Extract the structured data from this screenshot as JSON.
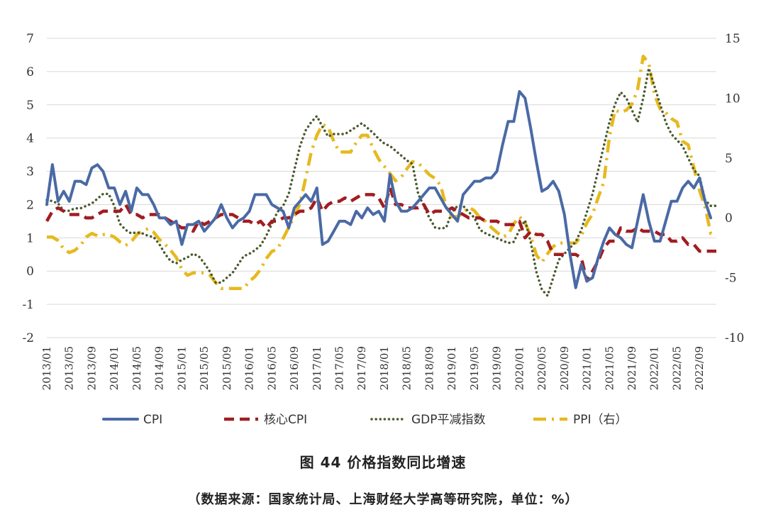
{
  "figure": {
    "title": "图 44 价格指数同比增速",
    "source": "（数据来源：国家统计局、上海财经大学高等研究院，单位：%）"
  },
  "chart_data": {
    "type": "line",
    "x_tick_labels": [
      "2013/01",
      "2013/05",
      "2013/09",
      "2014/01",
      "2014/05",
      "2014/09",
      "2015/01",
      "2015/05",
      "2015/09",
      "2016/01",
      "2016/05",
      "2016/09",
      "2017/01",
      "2017/05",
      "2017/09",
      "2018/01",
      "2018/05",
      "2018/09",
      "2019/01",
      "2019/05",
      "2019/09",
      "2020/01",
      "2020/05",
      "2020/09",
      "2021/01",
      "2021/05",
      "2021/09",
      "2022/01",
      "2022/05",
      "2022/09"
    ],
    "x_start": "2013/01",
    "x_end": "2022/12",
    "y_left": {
      "range": [
        -2,
        7
      ],
      "ticks": [
        "-2",
        "-1",
        "0",
        "1",
        "2",
        "3",
        "4",
        "5",
        "6",
        "7"
      ]
    },
    "y_right": {
      "range": [
        -10,
        15
      ],
      "ticks": [
        "-10",
        "-5",
        "0",
        "5",
        "10",
        "15"
      ]
    },
    "grid": "horizontal",
    "legend_position": "bottom",
    "series": [
      {
        "name": "CPI",
        "axis": "left",
        "color": "#4a6aa5",
        "style": "solid",
        "values": [
          2.0,
          3.2,
          2.1,
          2.4,
          2.1,
          2.7,
          2.7,
          2.6,
          3.1,
          3.2,
          3.0,
          2.5,
          2.5,
          2.0,
          2.4,
          1.8,
          2.5,
          2.3,
          2.3,
          2.0,
          1.6,
          1.6,
          1.4,
          1.5,
          0.8,
          1.4,
          1.4,
          1.5,
          1.2,
          1.4,
          1.6,
          2.0,
          1.6,
          1.3,
          1.5,
          1.6,
          1.8,
          2.3,
          2.3,
          2.3,
          2.0,
          1.9,
          1.8,
          1.3,
          1.9,
          2.1,
          2.3,
          2.1,
          2.5,
          0.8,
          0.9,
          1.2,
          1.5,
          1.5,
          1.4,
          1.8,
          1.6,
          1.9,
          1.7,
          1.8,
          1.5,
          2.9,
          2.1,
          1.8,
          1.8,
          1.9,
          2.1,
          2.3,
          2.5,
          2.5,
          2.2,
          1.9,
          1.7,
          1.5,
          2.3,
          2.5,
          2.7,
          2.7,
          2.8,
          2.8,
          3.0,
          3.8,
          4.5,
          4.5,
          5.4,
          5.2,
          4.3,
          3.3,
          2.4,
          2.5,
          2.7,
          2.4,
          1.7,
          0.5,
          -0.5,
          0.2,
          -0.3,
          -0.2,
          0.4,
          0.9,
          1.3,
          1.1,
          1.0,
          0.8,
          0.7,
          1.5,
          2.3,
          1.5,
          0.9,
          0.9,
          1.5,
          2.1,
          2.1,
          2.5,
          2.7,
          2.5,
          2.8,
          2.1,
          1.6
        ]
      },
      {
        "name": "核心CPI",
        "axis": "left",
        "color": "#a11d21",
        "style": "dashed",
        "values": [
          1.5,
          1.8,
          1.9,
          1.8,
          1.7,
          1.7,
          1.7,
          1.6,
          1.6,
          1.7,
          1.8,
          1.8,
          1.8,
          1.8,
          2.0,
          1.7,
          1.7,
          1.6,
          1.7,
          1.7,
          1.7,
          1.6,
          1.5,
          1.4,
          1.3,
          1.3,
          1.2,
          1.5,
          1.4,
          1.5,
          1.6,
          1.7,
          1.7,
          1.7,
          1.6,
          1.5,
          1.5,
          1.4,
          1.5,
          1.3,
          1.5,
          1.5,
          1.6,
          1.6,
          1.7,
          1.8,
          1.8,
          1.9,
          2.2,
          1.8,
          2.0,
          2.1,
          2.1,
          2.2,
          2.1,
          2.2,
          2.3,
          2.3,
          2.3,
          2.2,
          1.9,
          2.5,
          2.0,
          2.0,
          1.9,
          1.9,
          1.9,
          2.0,
          1.7,
          1.8,
          1.8,
          1.8,
          1.9,
          1.8,
          1.7,
          1.6,
          1.6,
          1.6,
          1.5,
          1.5,
          1.5,
          1.4,
          1.4,
          1.4,
          1.5,
          1.0,
          1.2,
          1.1,
          1.1,
          0.9,
          0.5,
          0.5,
          0.5,
          0.5,
          0.5,
          0.4,
          -0.3,
          0.0,
          0.3,
          0.7,
          0.9,
          0.9,
          1.3,
          1.2,
          1.2,
          1.3,
          1.2,
          1.2,
          1.2,
          1.1,
          1.1,
          0.9,
          0.9,
          1.0,
          0.8,
          0.8,
          0.6,
          0.6,
          0.6,
          0.6
        ]
      },
      {
        "name": "GDP平减指数",
        "axis": "right",
        "color": "#4a5a30",
        "style": "dotted",
        "values": [
          1.5,
          1.4,
          1.2,
          0.6,
          0.6,
          0.8,
          0.8,
          1.0,
          1.2,
          1.6,
          2.0,
          2.0,
          1.0,
          -0.5,
          -1.0,
          -1.3,
          -1.2,
          -1.3,
          -1.5,
          -1.6,
          -2.2,
          -3.0,
          -3.6,
          -3.8,
          -3.5,
          -3.3,
          -3.0,
          -3.2,
          -3.8,
          -4.5,
          -5.4,
          -5.4,
          -5.0,
          -4.6,
          -3.9,
          -3.2,
          -3.0,
          -2.7,
          -2.3,
          -1.5,
          -0.5,
          0.5,
          1.0,
          2.0,
          4.0,
          6.0,
          7.3,
          8.0,
          8.5,
          7.6,
          6.8,
          7.0,
          7.0,
          7.0,
          7.3,
          7.6,
          7.9,
          7.5,
          7.1,
          6.6,
          6.2,
          6.0,
          5.6,
          5.2,
          4.8,
          4.5,
          2.0,
          1.0,
          0.0,
          -0.8,
          -0.9,
          -0.8,
          0.5,
          1.0,
          1.0,
          0.5,
          0.0,
          -1.0,
          -1.3,
          -1.5,
          -1.7,
          -1.9,
          -2.1,
          -2.0,
          -1.0,
          -0.2,
          -2.0,
          -4.5,
          -6.0,
          -6.5,
          -5.0,
          -3.5,
          -3.0,
          -2.5,
          -2.0,
          -1.0,
          0.5,
          2.0,
          4.0,
          6.0,
          8.0,
          9.5,
          10.5,
          10.0,
          9.0,
          8.0,
          10.0,
          12.5,
          11.0,
          9.5,
          8.0,
          7.0,
          6.5,
          6.0,
          5.0,
          4.0,
          3.5,
          1.5,
          1.0,
          1.0
        ]
      },
      {
        "name": "PPI（右）",
        "axis": "right",
        "color": "#e6b91e",
        "style": "dashdot",
        "values": [
          -1.6,
          -1.6,
          -1.9,
          -2.6,
          -2.9,
          -2.7,
          -2.3,
          -1.6,
          -1.3,
          -1.5,
          -1.4,
          -1.4,
          -1.6,
          -2.0,
          -2.3,
          -2.0,
          -1.4,
          -1.1,
          -0.9,
          -1.2,
          -1.8,
          -2.2,
          -2.7,
          -3.3,
          -4.3,
          -4.8,
          -4.6,
          -4.6,
          -4.6,
          -4.8,
          -5.4,
          -5.9,
          -5.9,
          -5.9,
          -5.9,
          -5.9,
          -5.3,
          -4.9,
          -4.3,
          -3.4,
          -2.8,
          -2.6,
          -1.7,
          -0.8,
          0.1,
          1.2,
          3.3,
          5.5,
          6.9,
          7.8,
          7.6,
          6.4,
          5.5,
          5.5,
          5.5,
          6.3,
          6.9,
          6.9,
          5.8,
          4.9,
          4.3,
          3.7,
          3.1,
          3.4,
          4.1,
          4.7,
          4.6,
          4.1,
          3.6,
          3.3,
          2.7,
          0.9,
          0.1,
          0.1,
          0.4,
          0.9,
          0.6,
          0.0,
          -0.3,
          -0.8,
          -1.2,
          -1.6,
          -1.4,
          -0.5,
          0.1,
          -0.4,
          -1.5,
          -3.1,
          -3.7,
          -3.0,
          -2.4,
          -2.1,
          -2.1,
          -2.1,
          -2.1,
          -1.5,
          -0.4,
          0.3,
          1.7,
          3.0,
          6.8,
          9.0,
          8.8,
          9.0,
          9.5,
          10.7,
          13.5,
          12.9,
          10.3,
          9.1,
          8.8,
          8.3,
          8.0,
          6.4,
          6.1,
          4.2,
          2.3,
          0.9,
          -1.3,
          -1.3
        ]
      }
    ]
  }
}
